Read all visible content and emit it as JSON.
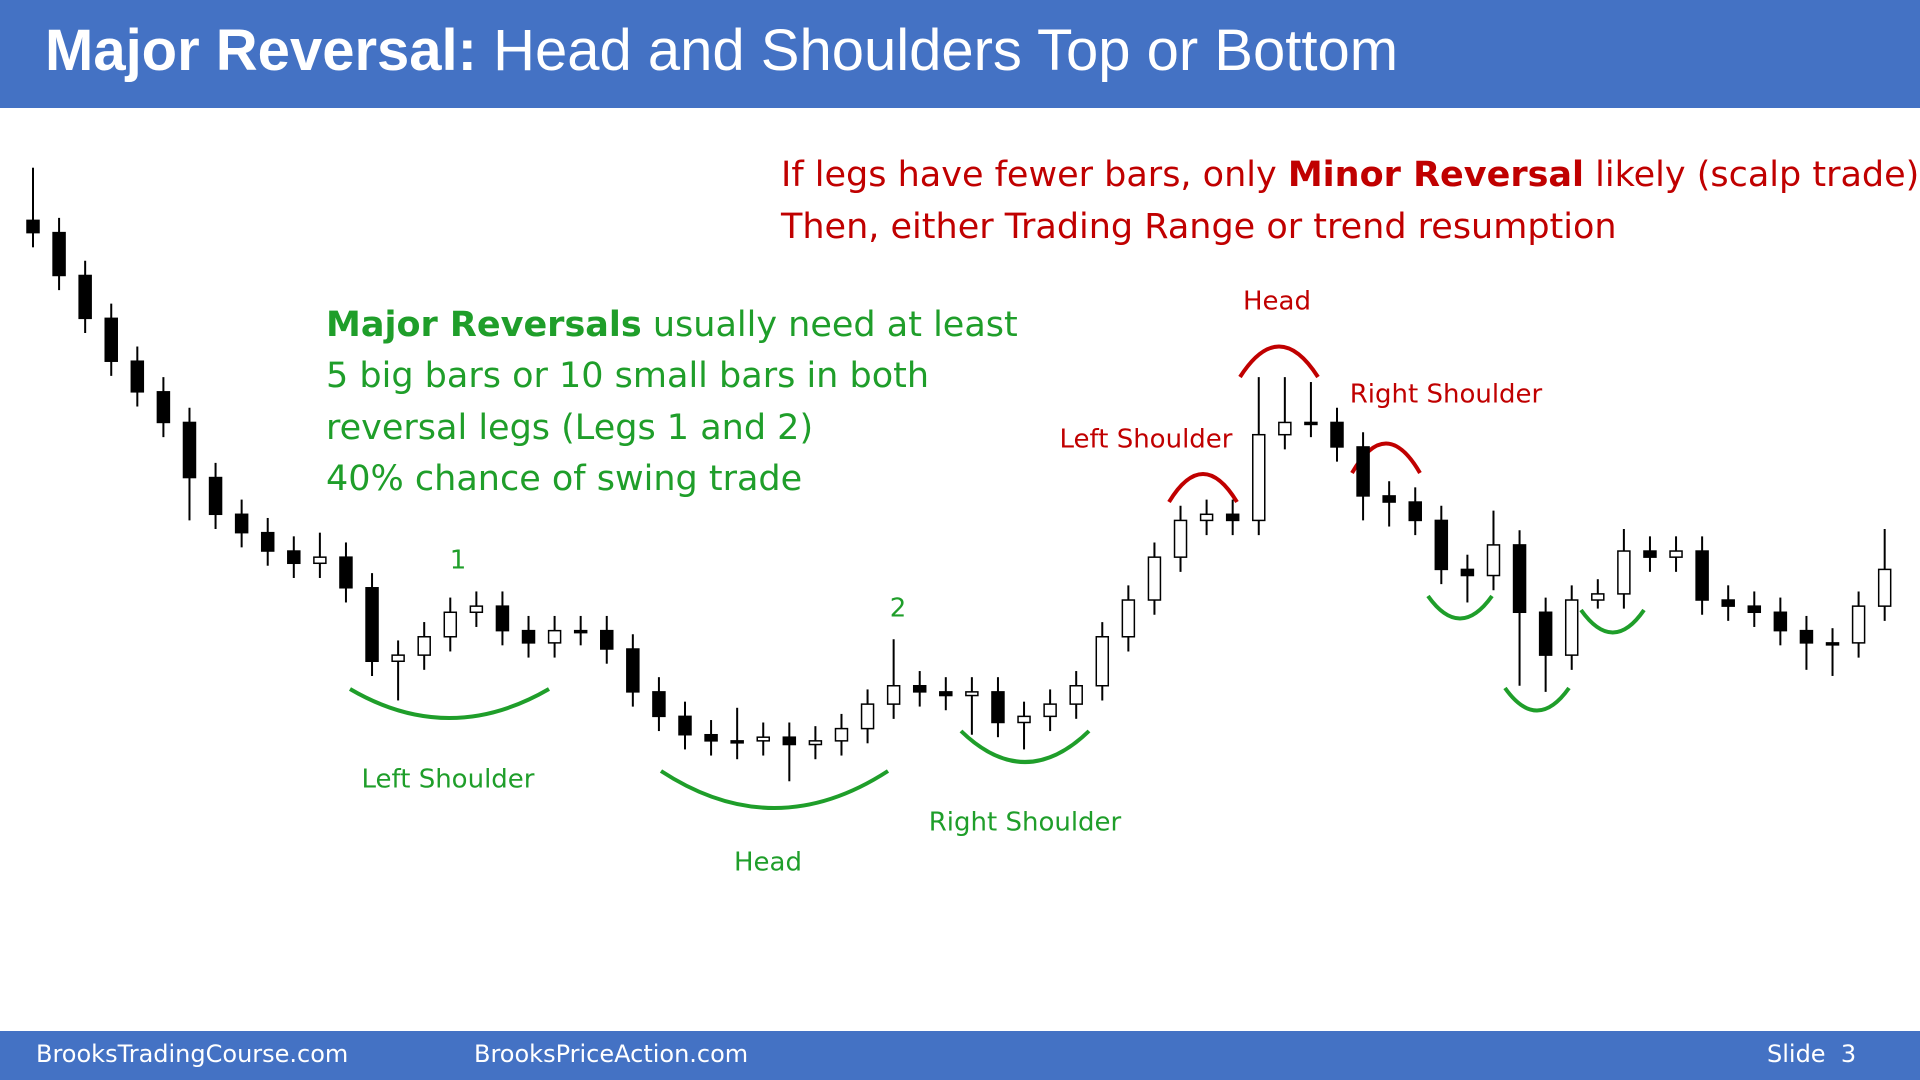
{
  "header": {
    "title_bold": "Major Reversal:",
    "title_rest": " Head and Shoulders Top or Bottom"
  },
  "note_red": {
    "line1_start": "If legs have fewer bars, only ",
    "line1_bold": "Minor Reversal",
    "line1_end": " likely (scalp trade)",
    "line2": "Then, either Trading Range or trend resumption"
  },
  "note_green": {
    "line1_bold": "Major Reversals",
    "line1_rest": " usually need at least",
    "line2": "5 big bars or 10 small bars in both",
    "line3": "reversal legs (Legs 1 and 2)",
    "line4": "40% chance of swing trade"
  },
  "labels_bottom": {
    "leg1": "1",
    "leg2": "2",
    "left_shoulder": "Left Shoulder",
    "head": "Head",
    "right_shoulder": "Right Shoulder"
  },
  "labels_top": {
    "head": "Head",
    "left_shoulder": "Left Shoulder",
    "right_shoulder": "Right Shoulder"
  },
  "footer": {
    "left": "BrooksTradingCourse.com",
    "middle": "BrooksPriceAction.com",
    "slide": "Slide  3"
  },
  "chart_data": {
    "type": "candlestick",
    "ylim": [
      200,
      800
    ],
    "open": [
      720,
      710,
      675,
      640,
      605,
      580,
      555,
      510,
      480,
      465,
      450,
      440,
      445,
      420,
      360,
      365,
      380,
      400,
      405,
      385,
      375,
      385,
      385,
      370,
      335,
      315,
      300,
      295,
      295,
      298,
      292,
      295,
      305,
      325,
      340,
      335,
      332,
      335,
      310,
      315,
      325,
      340,
      380,
      410,
      445,
      475,
      480,
      475,
      545,
      555,
      555,
      535,
      495,
      490,
      475,
      435,
      430,
      455,
      400,
      365,
      410,
      415,
      450,
      445,
      450,
      410,
      405,
      400,
      385,
      375,
      375,
      405
    ],
    "high": [
      763,
      722,
      687,
      652,
      617,
      592,
      567,
      522,
      492,
      477,
      462,
      465,
      457,
      432,
      377,
      392,
      412,
      417,
      417,
      397,
      397,
      397,
      397,
      382,
      347,
      327,
      312,
      322,
      310,
      310,
      307,
      317,
      337,
      378,
      352,
      347,
      347,
      347,
      327,
      337,
      352,
      392,
      422,
      457,
      487,
      492,
      492,
      592,
      592,
      588,
      567,
      547,
      507,
      502,
      487,
      447,
      483,
      467,
      412,
      422,
      427,
      468,
      462,
      462,
      462,
      422,
      417,
      412,
      397,
      387,
      417,
      468
    ],
    "low": [
      698,
      663,
      628,
      593,
      568,
      543,
      475,
      468,
      453,
      438,
      428,
      428,
      408,
      348,
      328,
      353,
      368,
      388,
      373,
      363,
      363,
      373,
      358,
      323,
      303,
      288,
      283,
      280,
      283,
      262,
      280,
      283,
      293,
      313,
      323,
      320,
      300,
      298,
      288,
      303,
      313,
      328,
      368,
      398,
      433,
      463,
      463,
      463,
      533,
      543,
      523,
      475,
      470,
      463,
      423,
      408,
      418,
      340,
      335,
      353,
      403,
      403,
      433,
      433,
      398,
      393,
      388,
      373,
      353,
      348,
      363,
      393
    ],
    "close": [
      710,
      675,
      640,
      605,
      580,
      555,
      510,
      480,
      465,
      450,
      440,
      445,
      420,
      360,
      365,
      380,
      400,
      405,
      385,
      375,
      385,
      385,
      370,
      335,
      315,
      300,
      295,
      295,
      298,
      292,
      295,
      305,
      325,
      340,
      335,
      332,
      335,
      310,
      315,
      325,
      340,
      380,
      410,
      445,
      475,
      480,
      475,
      545,
      555,
      555,
      535,
      495,
      490,
      475,
      435,
      430,
      455,
      400,
      365,
      410,
      415,
      450,
      445,
      450,
      410,
      405,
      400,
      385,
      375,
      375,
      405,
      435
    ],
    "up_color": "#ffffff",
    "down_color": "#000000",
    "wick_color": "#000000"
  }
}
